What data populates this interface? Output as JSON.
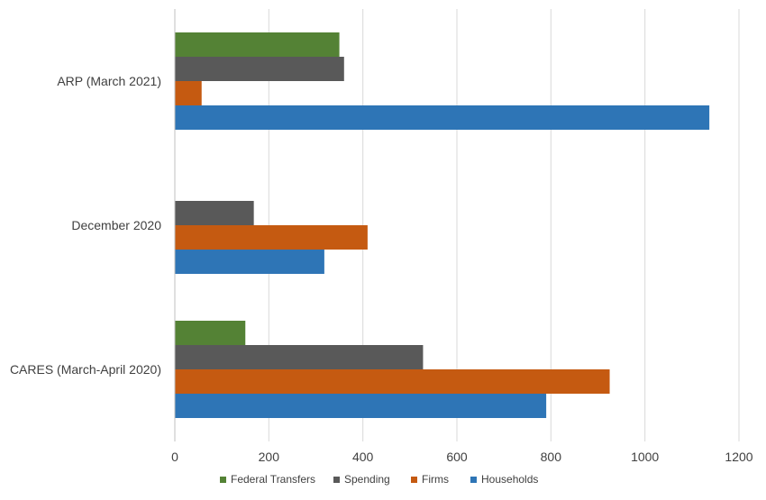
{
  "chart_data": {
    "type": "bar",
    "orientation": "horizontal",
    "title": "",
    "xlabel": "",
    "ylabel": "",
    "categories": [
      "CARES (March-April 2020)",
      "December 2020",
      "ARP (March 2021)"
    ],
    "xlim": [
      0,
      1200
    ],
    "xticks": [
      0,
      200,
      400,
      600,
      800,
      1000,
      1200
    ],
    "grid": "vertical",
    "legend_position": "bottom",
    "series": [
      {
        "name": "Households",
        "color": "#2e75b6",
        "values": [
          790,
          318,
          1137
        ]
      },
      {
        "name": "Firms",
        "color": "#c55a11",
        "values": [
          925,
          410,
          57
        ]
      },
      {
        "name": "Spending",
        "color": "#595959",
        "values": [
          528,
          168,
          360
        ]
      },
      {
        "name": "Federal Transfers",
        "color": "#548235",
        "values": [
          150,
          0,
          350
        ]
      }
    ],
    "legend_order": [
      "Federal Transfers",
      "Spending",
      "Firms",
      "Households"
    ]
  }
}
